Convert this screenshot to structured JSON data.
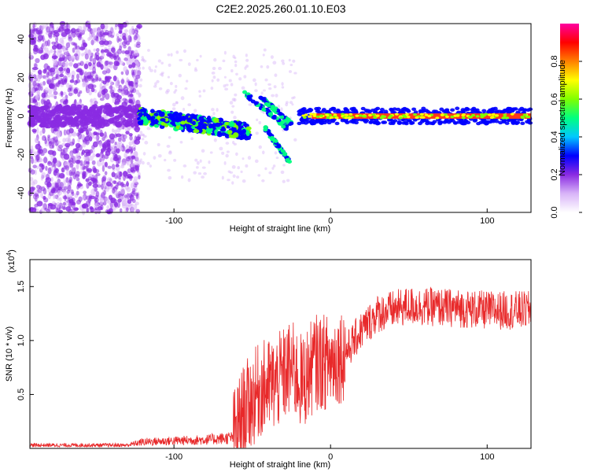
{
  "chart_data": [
    {
      "type": "heatmap",
      "title": "C2E2.2025.260.01.10.E03",
      "xlabel": "Height of straight line (km)",
      "ylabel": "Frequency (Hz)",
      "xlim": [
        -192,
        128
      ],
      "ylim": [
        -50,
        48
      ],
      "xticks": [
        -100,
        0,
        100
      ],
      "xtick_labels": [
        "-100",
        "0",
        "100"
      ],
      "yticks": [
        -40,
        -20,
        0,
        20,
        40
      ],
      "ytick_labels": [
        "-40",
        "-20",
        "0",
        "20",
        "40"
      ],
      "colorbar": {
        "label": "Normalized spectral amplitude",
        "range": [
          0,
          1
        ],
        "ticks": [
          0.0,
          0.2,
          0.4,
          0.6,
          0.8
        ],
        "tick_labels": [
          "0.0",
          "0.2",
          "0.4",
          "0.6",
          "0.8"
        ],
        "colors": [
          "#ffffff",
          "#d8b4f8",
          "#8a2be2",
          "#0000ff",
          "#00c8ff",
          "#00ff80",
          "#80ff00",
          "#ffff00",
          "#ff8000",
          "#ff0000",
          "#ff00a0"
        ]
      },
      "features": {
        "noise_region_x": [
          -192,
          -122
        ],
        "carrier_line_x": [
          -20,
          128
        ],
        "carrier_freq": 0,
        "descending_streaks": [
          {
            "x": [
              -55,
              -28
            ],
            "y": [
              12,
              -6
            ]
          },
          {
            "x": [
              -45,
              -25
            ],
            "y": [
              10,
              -4
            ]
          },
          {
            "x": [
              -42,
              -26
            ],
            "y": [
              -6,
              -24
            ]
          }
        ]
      }
    },
    {
      "type": "line",
      "xlabel": "Height of straight line (km)",
      "ylabel": "SNR (10 * v/v)",
      "y_multiplier": "(x10",
      "y_multiplier_exp": "4",
      "y_multiplier_close": ")",
      "xlim": [
        -192,
        128
      ],
      "ylim": [
        0,
        1.75
      ],
      "xticks": [
        -100,
        0,
        100
      ],
      "xtick_labels": [
        "-100",
        "0",
        "100"
      ],
      "yticks": [
        0.5,
        1.0,
        1.5
      ],
      "ytick_labels": [
        "0.5",
        "1.0",
        "1.5"
      ],
      "series": [
        {
          "name": "SNR",
          "color": "#e8292a",
          "profile": [
            [
              -192,
              0.03
            ],
            [
              -130,
              0.03
            ],
            [
              -120,
              0.06
            ],
            [
              -80,
              0.08
            ],
            [
              -62,
              0.1
            ],
            [
              -55,
              0.35
            ],
            [
              -45,
              0.55
            ],
            [
              -35,
              0.6
            ],
            [
              -25,
              0.75
            ],
            [
              -18,
              0.6
            ],
            [
              -10,
              0.8
            ],
            [
              0,
              0.8
            ],
            [
              10,
              0.9
            ],
            [
              20,
              1.1
            ],
            [
              30,
              1.25
            ],
            [
              50,
              1.32
            ],
            [
              80,
              1.3
            ],
            [
              100,
              1.28
            ],
            [
              128,
              1.28
            ]
          ]
        }
      ]
    }
  ]
}
